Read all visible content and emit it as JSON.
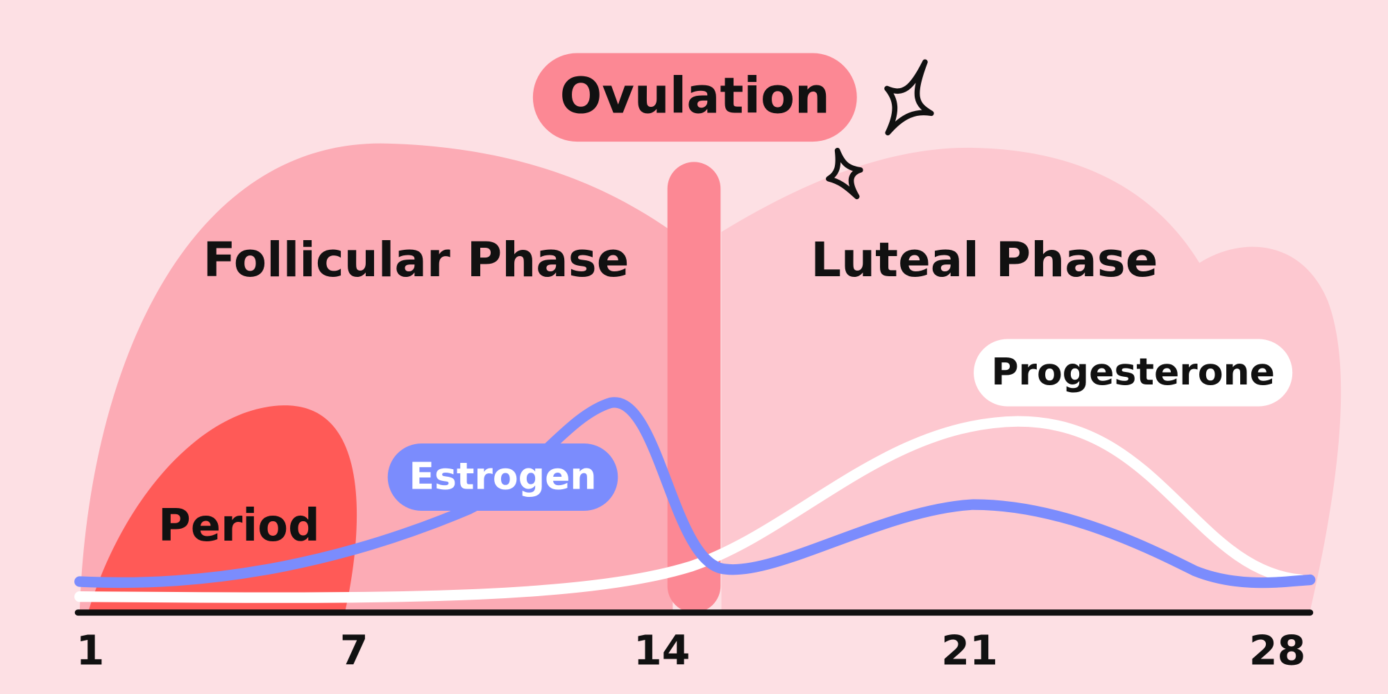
{
  "ovulation": "Ovulation",
  "phases": [
    "Follicular Phase",
    "Luteal Phase"
  ],
  "period": "Period",
  "hormones": {
    "estrogen": "Estrogen",
    "progesterone": "Progesterone"
  },
  "axis": {
    "ticks": [
      1,
      7,
      14,
      21,
      28
    ]
  }
}
